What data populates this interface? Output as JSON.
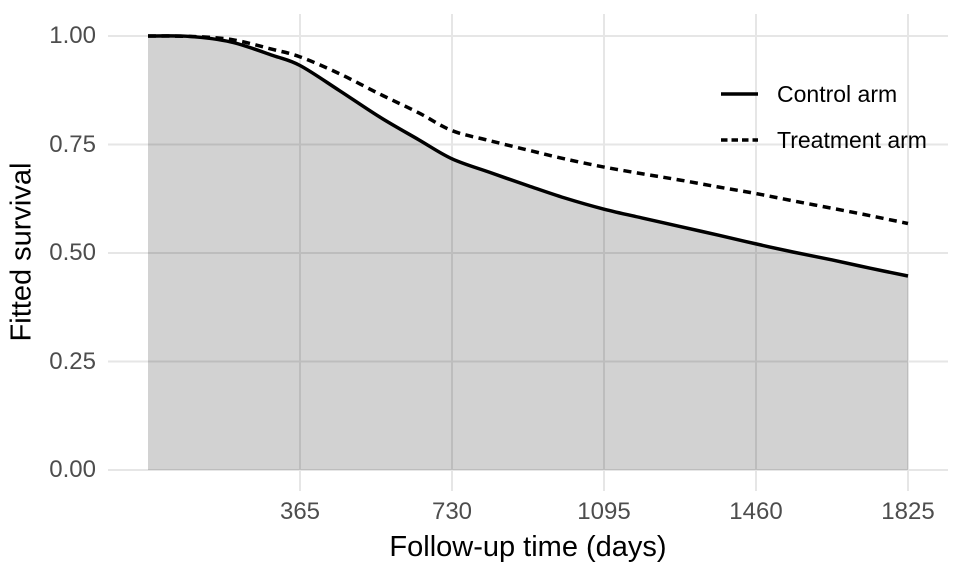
{
  "chart_data": {
    "type": "line",
    "title": "",
    "xlabel": "Follow-up time (days)",
    "ylabel": "Fitted survival",
    "x_ticks": [
      365,
      730,
      1095,
      1460,
      1825
    ],
    "x_tick_labels": [
      "365",
      "730",
      "1095",
      "1460",
      "1825"
    ],
    "y_ticks": [
      0,
      0.25,
      0.5,
      0.75,
      1
    ],
    "y_tick_labels": [
      "0.00",
      "0.25",
      "0.50",
      "0.75",
      "1.00"
    ],
    "xlim": [
      0,
      1825
    ],
    "ylim": [
      0,
      1
    ],
    "grid": "major-only",
    "legend_position": "inside-top-right",
    "x": [
      0,
      100,
      200,
      300,
      365,
      460,
      557,
      650,
      730,
      820,
      913,
      1000,
      1095,
      1190,
      1278,
      1370,
      1460,
      1550,
      1643,
      1734,
      1825
    ],
    "series": [
      {
        "name": "Control arm",
        "linetype": "solid",
        "color": "#000000",
        "has_area_fill": true,
        "values": [
          1.0,
          0.999,
          0.986,
          0.955,
          0.932,
          0.874,
          0.813,
          0.761,
          0.717,
          0.686,
          0.655,
          0.627,
          0.601,
          0.58,
          0.561,
          0.541,
          0.521,
          0.502,
          0.484,
          0.465,
          0.447
        ]
      },
      {
        "name": "Treatment arm",
        "linetype": "dashed",
        "color": "#000000",
        "has_area_fill": false,
        "values": [
          1.0,
          0.999,
          0.992,
          0.969,
          0.952,
          0.913,
          0.866,
          0.823,
          0.782,
          0.759,
          0.737,
          0.717,
          0.698,
          0.682,
          0.668,
          0.652,
          0.637,
          0.62,
          0.603,
          0.586,
          0.568
        ]
      }
    ]
  },
  "colors": {
    "background": "#ffffff",
    "gridline": "#e6e6e6",
    "tick_label": "#4d4d4d",
    "axis_title": "#000000",
    "curve": "#000000",
    "ribbon": "rgba(0,0,0,0.175)"
  }
}
